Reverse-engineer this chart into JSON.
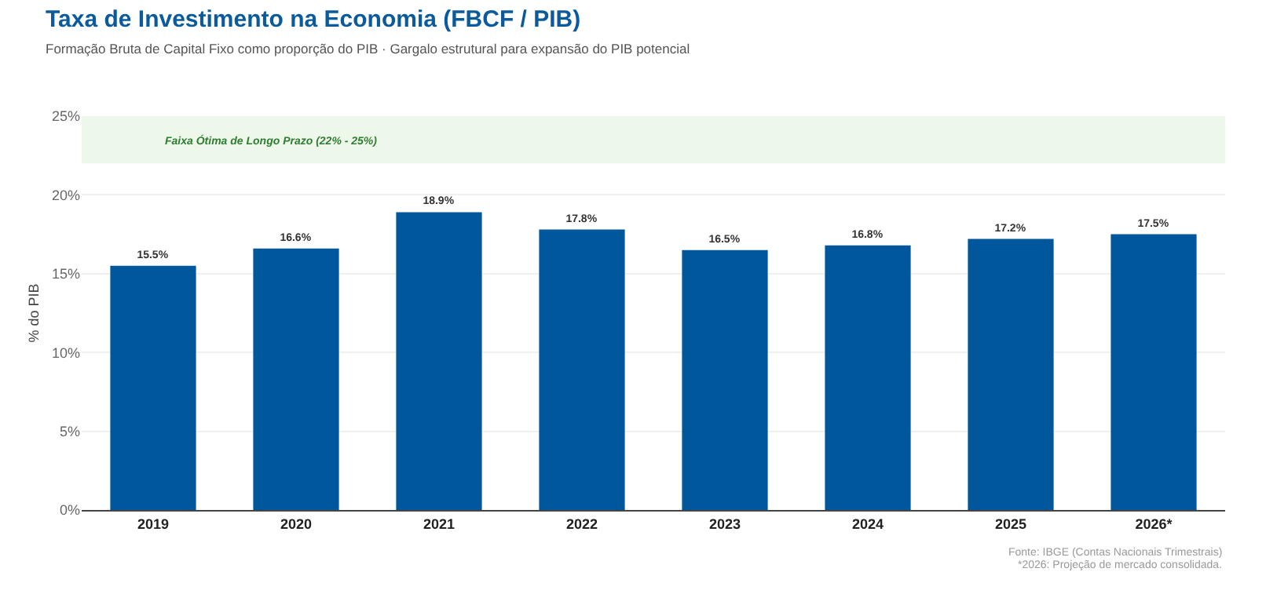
{
  "chart_data": {
    "type": "bar",
    "title": "Taxa de Investimento na Economia (FBCF / PIB)",
    "subtitle": "Formação Bruta de Capital Fixo como proporção do PIB · Gargalo estrutural para expansão do PIB potencial",
    "ylabel": "% do PIB",
    "categories": [
      "2019",
      "2020",
      "2021",
      "2022",
      "2023",
      "2024",
      "2025",
      "2026*"
    ],
    "series": [
      {
        "color": "#00579c",
        "values": [
          15.5,
          16.6,
          18.9,
          17.8,
          16.5,
          16.8,
          17.2,
          17.5
        ],
        "value_labels": [
          "15.5%",
          "16.6%",
          "18.9%",
          "17.8%",
          "16.5%",
          "16.8%",
          "17.2%",
          "17.5%"
        ]
      }
    ],
    "ylim": [
      0,
      25
    ],
    "yticks": [
      {
        "value": 0,
        "label": "0%"
      },
      {
        "value": 5,
        "label": "5%"
      },
      {
        "value": 10,
        "label": "10%"
      },
      {
        "value": 15,
        "label": "15%"
      },
      {
        "value": 20,
        "label": "20%"
      },
      {
        "value": 25,
        "label": "25%"
      }
    ],
    "grid": "y",
    "bands": [
      {
        "axis": "y",
        "from": 22,
        "to": 25,
        "label": "Faixa Ótima de Longo Prazo (22% - 25%)",
        "color": "#edf7ea"
      }
    ],
    "annotations": [
      "Fonte: IBGE (Contas Nacionais Trimestrais)",
      "*2026: Projeção de mercado consolidada."
    ]
  }
}
